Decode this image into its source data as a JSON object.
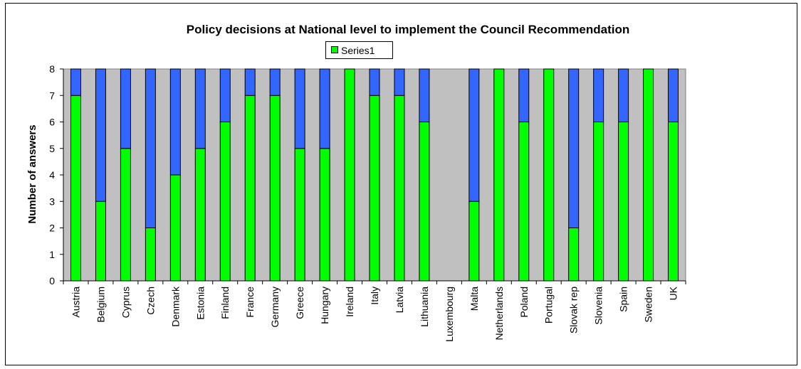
{
  "chart_data": {
    "type": "bar",
    "stacked": true,
    "title": "Policy decisions at National level to implement the Council Recommendation",
    "xlabel": "",
    "ylabel": "Number of answers",
    "ylim": [
      0,
      8
    ],
    "yticks": [
      0,
      1,
      2,
      3,
      4,
      5,
      6,
      7,
      8
    ],
    "grid": false,
    "legend_position": "top-center",
    "categories": [
      "Austria",
      "Belgium",
      "Cyprus",
      "Czech",
      "Denmark",
      "Estonia",
      "Finland",
      "France",
      "Germany",
      "Greece",
      "Hungary",
      "Ireland",
      "Italy",
      "Latvia",
      "Lithuania",
      "Luxembourg",
      "Malta",
      "Netherlands",
      "Poland",
      "Portugal",
      "Slovak rep",
      "Slovenia",
      "Spain",
      "Sweden",
      "UK"
    ],
    "series": [
      {
        "name": "Series1",
        "color": "#00ff00",
        "values": [
          7,
          3,
          5,
          2,
          4,
          5,
          6,
          7,
          7,
          5,
          5,
          8,
          7,
          7,
          6,
          0,
          3,
          8,
          6,
          8,
          2,
          6,
          6,
          8,
          6
        ]
      },
      {
        "color": "#3366ff",
        "values": [
          1,
          5,
          3,
          6,
          4,
          3,
          2,
          1,
          1,
          3,
          3,
          0,
          1,
          1,
          2,
          0,
          5,
          0,
          2,
          0,
          6,
          2,
          2,
          0,
          2
        ]
      }
    ],
    "plot_background": "#c0c0c0"
  }
}
